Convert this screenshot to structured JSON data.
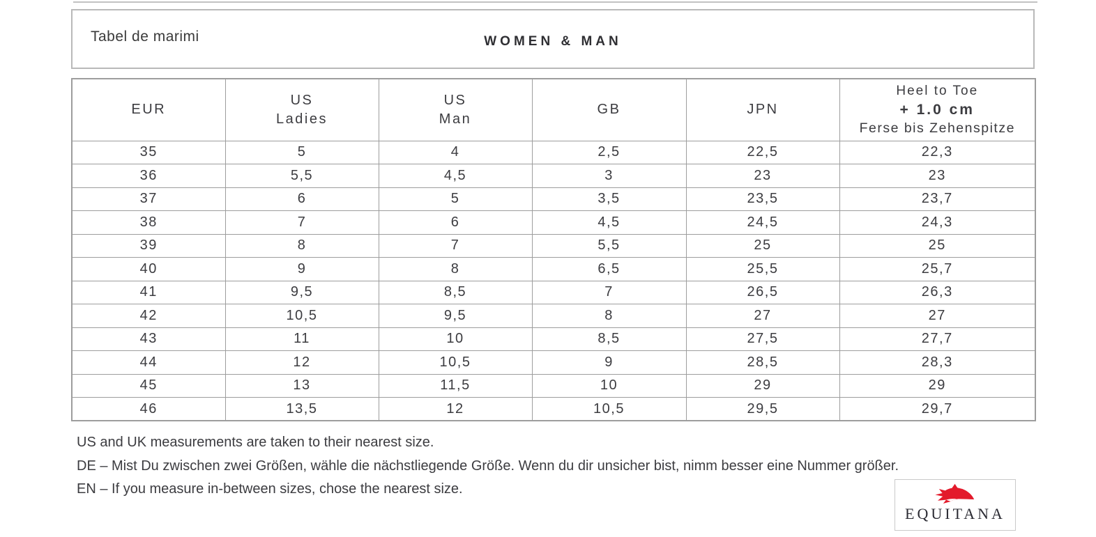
{
  "colors": {
    "accent_red": "#d22035",
    "logo_red": "#e31a2b",
    "text": "#3c3c40",
    "border_gray": "#9d9d9d"
  },
  "header_bar": {
    "title": "Tabel de marimi",
    "audience_label": "WOMEN & MAN"
  },
  "size_table": {
    "columns": [
      {
        "id": "eur",
        "lines": [
          "EUR"
        ],
        "highlight": false
      },
      {
        "id": "us-ladies",
        "lines": [
          "US",
          "Ladies"
        ],
        "highlight": false
      },
      {
        "id": "us-man",
        "lines": [
          "US",
          "Man"
        ],
        "highlight": false
      },
      {
        "id": "gb",
        "lines": [
          "GB"
        ],
        "highlight": false
      },
      {
        "id": "jpn",
        "lines": [
          "JPN"
        ],
        "highlight": false
      },
      {
        "id": "heel-to-toe",
        "lines": [
          "Heel to Toe",
          "+ 1.0 cm",
          "Ferse bis Zehenspitze"
        ],
        "highlight": true
      }
    ],
    "rows": [
      [
        "35",
        "5",
        "4",
        "2,5",
        "22,5",
        "22,3"
      ],
      [
        "36",
        "5,5",
        "4,5",
        "3",
        "23",
        "23"
      ],
      [
        "37",
        "6",
        "5",
        "3,5",
        "23,5",
        "23,7"
      ],
      [
        "38",
        "7",
        "6",
        "4,5",
        "24,5",
        "24,3"
      ],
      [
        "39",
        "8",
        "7",
        "5,5",
        "25",
        "25"
      ],
      [
        "40",
        "9",
        "8",
        "6,5",
        "25,5",
        "25,7"
      ],
      [
        "41",
        "9,5",
        "8,5",
        "7",
        "26,5",
        "26,3"
      ],
      [
        "42",
        "10,5",
        "9,5",
        "8",
        "27",
        "27"
      ],
      [
        "43",
        "11",
        "10",
        "8,5",
        "27,5",
        "27,7"
      ],
      [
        "44",
        "12",
        "10,5",
        "9",
        "28,5",
        "28,3"
      ],
      [
        "45",
        "13",
        "11,5",
        "10",
        "29",
        "29"
      ],
      [
        "46",
        "13,5",
        "12",
        "10,5",
        "29,5",
        "29,7"
      ]
    ]
  },
  "notes": [
    "US and UK measurements are taken to their nearest size.",
    "DE – Mist Du zwischen zwei Größen, wähle die nächstliegende Größe. Wenn du dir unsicher bist, nimm besser eine Nummer größer.",
    "EN – If you measure in-between sizes, chose the nearest size."
  ],
  "logo": {
    "brand": "EQUITANA",
    "icon": "horse-head-icon"
  }
}
